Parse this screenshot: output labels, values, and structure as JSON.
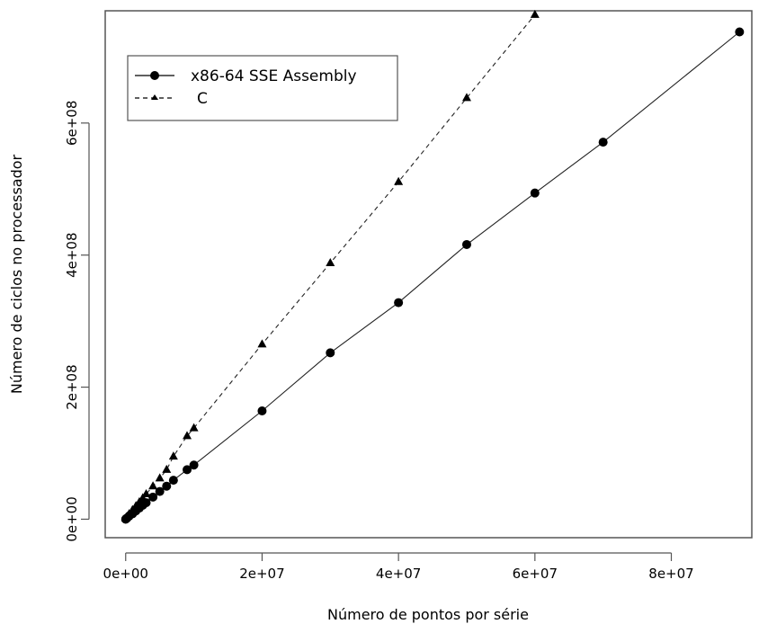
{
  "chart_data": {
    "type": "line",
    "title": "",
    "xlabel": "Número de pontos por série",
    "ylabel": "Número de ciclos no processador",
    "xlim": [
      -3000000,
      91800000
    ],
    "ylim": [
      -28000000,
      770000000
    ],
    "x_ticks": [
      {
        "value": 0,
        "label": "0e+00"
      },
      {
        "value": 20000000,
        "label": "2e+07"
      },
      {
        "value": 40000000,
        "label": "4e+07"
      },
      {
        "value": 60000000,
        "label": "6e+07"
      },
      {
        "value": 80000000,
        "label": "8e+07"
      }
    ],
    "y_ticks": [
      {
        "value": 0,
        "label": "0e+00"
      },
      {
        "value": 200000000,
        "label": "2e+08"
      },
      {
        "value": 400000000,
        "label": "4e+08"
      },
      {
        "value": 600000000,
        "label": "6e+08"
      }
    ],
    "grid": false,
    "legend_position": "top-left",
    "series": [
      {
        "name": "x86-64 SSE Assembly",
        "marker": "circle",
        "line_style": "solid",
        "points": [
          [
            0,
            0
          ],
          [
            100000,
            1000000
          ],
          [
            200000,
            1800000
          ],
          [
            500000,
            4500000
          ],
          [
            1000000,
            8200000
          ],
          [
            1500000,
            12500000
          ],
          [
            2000000,
            16800000
          ],
          [
            2500000,
            21000000
          ],
          [
            3000000,
            25000000
          ],
          [
            4000000,
            33500000
          ],
          [
            5000000,
            42000000
          ],
          [
            6000000,
            50000000
          ],
          [
            7000000,
            59000000
          ],
          [
            9000000,
            75000000
          ],
          [
            10000000,
            82000000
          ],
          [
            20000000,
            164000000
          ],
          [
            30000000,
            252000000
          ],
          [
            40000000,
            328000000
          ],
          [
            50000000,
            416000000
          ],
          [
            60000000,
            494000000
          ],
          [
            70000000,
            571000000
          ],
          [
            90000000,
            738000000
          ]
        ]
      },
      {
        "name": "C",
        "marker": "triangle",
        "line_style": "dashed",
        "points": [
          [
            0,
            1500000
          ],
          [
            100000,
            2800000
          ],
          [
            200000,
            4000000
          ],
          [
            500000,
            8000000
          ],
          [
            1000000,
            14000000
          ],
          [
            1500000,
            20000000
          ],
          [
            2000000,
            26000000
          ],
          [
            2500000,
            32000000
          ],
          [
            3000000,
            38000000
          ],
          [
            4000000,
            50000000
          ],
          [
            5000000,
            62000000
          ],
          [
            6000000,
            75000000
          ],
          [
            7000000,
            95000000
          ],
          [
            9000000,
            126000000
          ],
          [
            10000000,
            138000000
          ],
          [
            20000000,
            265000000
          ],
          [
            30000000,
            388000000
          ],
          [
            40000000,
            511000000
          ],
          [
            50000000,
            638000000
          ],
          [
            60000000,
            764000000
          ]
        ]
      }
    ]
  }
}
